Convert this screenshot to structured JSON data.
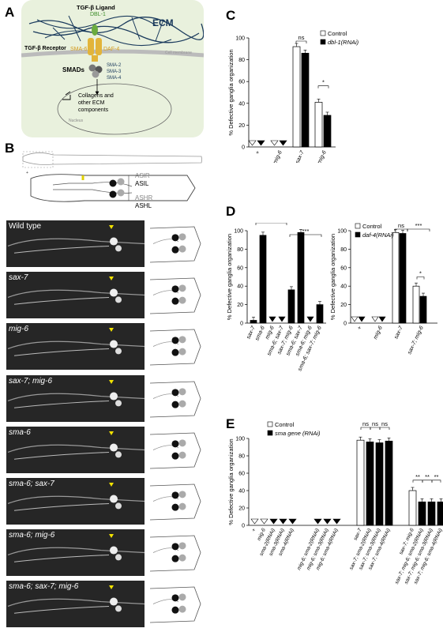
{
  "panels": {
    "A": "A",
    "B": "B",
    "C": "C",
    "D": "D",
    "E": "E"
  },
  "panelA": {
    "ligand_title": "TGF-β Ligand",
    "ligand_name": "DBL-1",
    "ecm": "ECM",
    "receptor_title": "TGF-β Receptor",
    "receptor_a": "SMA-6",
    "receptor_b": "DAF-4",
    "membrane": "Cell membrane",
    "smads": "SMADs",
    "smad_list": [
      "SMA-2",
      "SMA-3",
      "SMA-4"
    ],
    "targets": "Collagens and other ECM components",
    "nucleus": "Nucleus"
  },
  "panelB": {
    "neurons": [
      "ASIR",
      "ASIL",
      "ASHR",
      "ASHL"
    ],
    "rows": [
      "Wild type",
      "sax-7",
      "mig-6",
      "sax-7; mig-6",
      "sma-6",
      "sma-6; sax-7",
      "sma-6; mig-6",
      "sma-6; sax-7; mig-6"
    ]
  },
  "colors": {
    "control": "#ffffff",
    "rnai": "#000000",
    "marker": "#f2e200",
    "receptor": "#e2b43a",
    "ligand": "#6aab3e"
  },
  "chart_data": [
    {
      "id": "C",
      "type": "bar",
      "ylabel": "% Defective ganglia organization",
      "ylim": [
        0,
        100
      ],
      "yticks": [
        0,
        20,
        40,
        60,
        80,
        100
      ],
      "legend": [
        "Control",
        "dbl-1(RNAi)"
      ],
      "categories": [
        "+",
        "mig-6",
        "sax-7",
        "sax-7; mig-6"
      ],
      "series": [
        {
          "name": "Control",
          "values": [
            0,
            0,
            92,
            41
          ]
        },
        {
          "name": "dbl-1(RNAi)",
          "values": [
            0,
            0,
            86,
            29
          ]
        }
      ],
      "sig": [
        "ns",
        "*"
      ]
    },
    {
      "id": "D1",
      "type": "bar",
      "ylabel": "% Defective ganglia organization",
      "ylim": [
        0,
        100
      ],
      "yticks": [
        0,
        20,
        40,
        60,
        80,
        100
      ],
      "categories": [
        "sax-7",
        "sma-6",
        "mig-6",
        "sma-6; sax-7",
        "sax-7; mig-6",
        "sma-6; sax-7",
        "sma-6; mig-6",
        "sma-6; sax-7; mig-6"
      ],
      "values": [
        3,
        95,
        0,
        0,
        36,
        98,
        0,
        20
      ],
      "sig": [
        "***",
        "ns",
        "***"
      ]
    },
    {
      "id": "D2",
      "type": "bar",
      "ylabel": "% Defective ganglia organization",
      "ylim": [
        0,
        100
      ],
      "yticks": [
        0,
        20,
        40,
        60,
        80,
        100
      ],
      "legend": [
        "Control",
        "daf-4(RNAi)"
      ],
      "categories": [
        "+",
        "mig-6",
        "sax-7",
        "sax-7; mig-6"
      ],
      "series": [
        {
          "name": "Control",
          "values": [
            0,
            0,
            98,
            40
          ]
        },
        {
          "name": "daf-4(RNAi)",
          "values": [
            0,
            0,
            97,
            29
          ]
        }
      ],
      "sig": [
        "ns",
        "***",
        "*"
      ]
    },
    {
      "id": "E",
      "type": "bar",
      "ylabel": "% Defective ganglia organization",
      "ylim": [
        0,
        100
      ],
      "yticks": [
        0,
        20,
        40,
        60,
        80,
        100
      ],
      "legend": [
        "Control",
        "sma gene (RNAi)"
      ],
      "categories": [
        "+",
        "mig-6",
        "sma-2(RNAi)",
        "sma-3(RNAi)",
        "sma-4(RNAi)",
        "mig-6; sma-2(RNAi)",
        "mig-6; sma-3(RNAi)",
        "mig-6; sma-4(RNAi)",
        "sax-7",
        "sax-7; sma-2(RNAi)",
        "sax-7; sma-3(RNAi)",
        "sax-7; sma-4(RNAi)",
        "sax-7; mig-6",
        "sax-7; mig-6; sma-2(RNAi)",
        "sax-7; mig-6; sma-3(RNAi)",
        "sax-7; mig-6; sma-4(RNAi)"
      ],
      "values": [
        0,
        0,
        0,
        0,
        0,
        0,
        0,
        0,
        98,
        96,
        95,
        97,
        40,
        27,
        27,
        27
      ],
      "sig": [
        "ns",
        "ns",
        "ns",
        "**",
        "**",
        "**"
      ]
    }
  ]
}
